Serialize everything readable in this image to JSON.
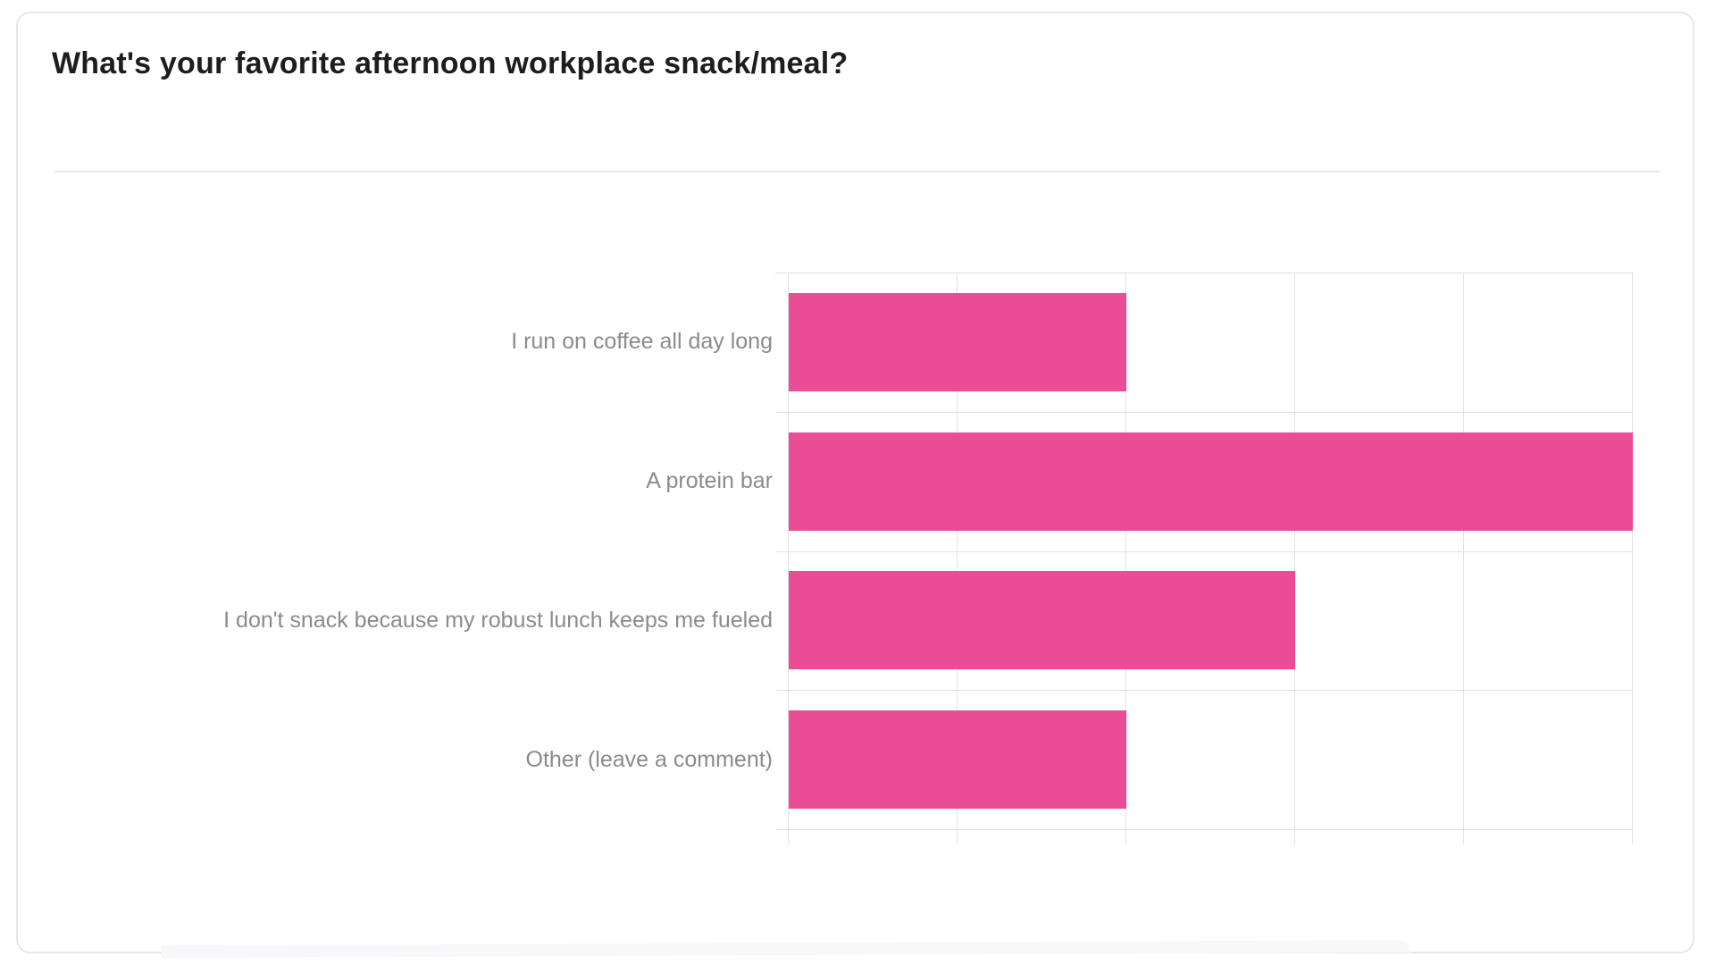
{
  "card": {
    "title": "What's your favorite afternoon workplace snack/meal?"
  },
  "chart_data": {
    "type": "bar",
    "orientation": "horizontal",
    "title": "What's your favorite afternoon workplace snack/meal?",
    "categories": [
      "I run on coffee all day long",
      "A protein bar",
      "I don't snack because my robust lunch keeps me fueled",
      "Other (leave a comment)"
    ],
    "values": [
      2,
      5,
      3,
      2
    ],
    "xlabel": "",
    "ylabel": "",
    "xlim": [
      0,
      5
    ],
    "x_tick_interval": 1,
    "tick_labels_shown": false,
    "grid": true,
    "legend": false,
    "colors": {
      "bar": "#ea4c96",
      "grid": "#e1e1e4",
      "label": "#8b8b8b",
      "title": "#1d1d1f",
      "card_border": "#e7e7eb",
      "divider": "#e8e8ec"
    }
  }
}
